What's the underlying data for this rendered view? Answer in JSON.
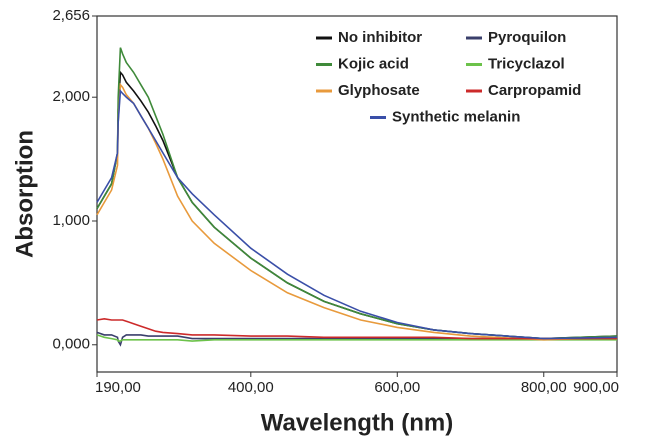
{
  "chart_data": {
    "type": "line",
    "xlabel": "Wavelength (nm)",
    "ylabel": "Absorption",
    "x": [
      190,
      200,
      210,
      218,
      219,
      222,
      225,
      230,
      240,
      250,
      260,
      270,
      280,
      300,
      320,
      350,
      400,
      450,
      500,
      550,
      600,
      650,
      700,
      800,
      900
    ],
    "series": [
      {
        "name": "No inhibitor",
        "color": "#111111",
        "values": [
          1.1,
          1.2,
          1.3,
          1.55,
          1.9,
          2.2,
          2.18,
          2.12,
          2.05,
          1.97,
          1.88,
          1.77,
          1.65,
          1.35,
          1.15,
          0.95,
          0.7,
          0.5,
          0.35,
          0.25,
          0.17,
          0.12,
          0.09,
          0.05,
          0.07
        ]
      },
      {
        "name": "Pyroquilon",
        "color": "#3a3f6b",
        "values": [
          0.1,
          0.08,
          0.08,
          0.06,
          0.03,
          0.0,
          0.06,
          0.08,
          0.08,
          0.08,
          0.07,
          0.07,
          0.07,
          0.07,
          0.05,
          0.05,
          0.05,
          0.05,
          0.05,
          0.05,
          0.05,
          0.05,
          0.05,
          0.05,
          0.05
        ]
      },
      {
        "name": "Kojic acid",
        "color": "#3f8a3a",
        "values": [
          1.1,
          1.2,
          1.3,
          1.55,
          2.0,
          2.4,
          2.35,
          2.28,
          2.2,
          2.1,
          2.0,
          1.85,
          1.7,
          1.35,
          1.15,
          0.95,
          0.7,
          0.5,
          0.35,
          0.25,
          0.17,
          0.12,
          0.09,
          0.05,
          0.07
        ]
      },
      {
        "name": "Tricyclazol",
        "color": "#6cc24a",
        "values": [
          0.08,
          0.06,
          0.05,
          0.04,
          0.03,
          0.03,
          0.04,
          0.04,
          0.04,
          0.04,
          0.04,
          0.04,
          0.04,
          0.04,
          0.03,
          0.04,
          0.04,
          0.04,
          0.04,
          0.04,
          0.04,
          0.04,
          0.04,
          0.04,
          0.04
        ]
      },
      {
        "name": "Glyphosate",
        "color": "#e89a3c",
        "values": [
          1.05,
          1.15,
          1.25,
          1.45,
          1.8,
          2.1,
          2.08,
          2.02,
          1.95,
          1.85,
          1.75,
          1.63,
          1.5,
          1.2,
          1.0,
          0.82,
          0.6,
          0.42,
          0.3,
          0.2,
          0.14,
          0.1,
          0.07,
          0.04,
          0.06
        ]
      },
      {
        "name": "Carpropamid",
        "color": "#cc2a2a",
        "values": [
          0.2,
          0.21,
          0.2,
          0.2,
          0.2,
          0.2,
          0.2,
          0.19,
          0.17,
          0.15,
          0.13,
          0.11,
          0.1,
          0.09,
          0.08,
          0.08,
          0.07,
          0.07,
          0.06,
          0.06,
          0.06,
          0.06,
          0.05,
          0.05,
          0.05
        ]
      },
      {
        "name": "Synthetic melanin",
        "color": "#3a4fa8",
        "values": [
          1.15,
          1.25,
          1.35,
          1.55,
          1.8,
          2.05,
          2.03,
          2.0,
          1.95,
          1.85,
          1.75,
          1.65,
          1.55,
          1.35,
          1.22,
          1.05,
          0.78,
          0.57,
          0.4,
          0.27,
          0.18,
          0.12,
          0.09,
          0.05,
          0.06
        ]
      }
    ],
    "xlim": [
      190,
      900
    ],
    "xticks": [
      {
        "value": 190,
        "label": "190,00"
      },
      {
        "value": 400,
        "label": "400,00"
      },
      {
        "value": 600,
        "label": "600,00"
      },
      {
        "value": 800,
        "label": "800,00"
      },
      {
        "value": 900,
        "label": "900,00"
      }
    ],
    "ylim": [
      -0.22,
      2.656
    ],
    "yticks": [
      {
        "value": 0,
        "label": "0,000"
      },
      {
        "value": 1,
        "label": "1,000"
      },
      {
        "value": 2,
        "label": "2,000"
      },
      {
        "value": 2.656,
        "label": "2,656"
      }
    ],
    "grid": false
  }
}
